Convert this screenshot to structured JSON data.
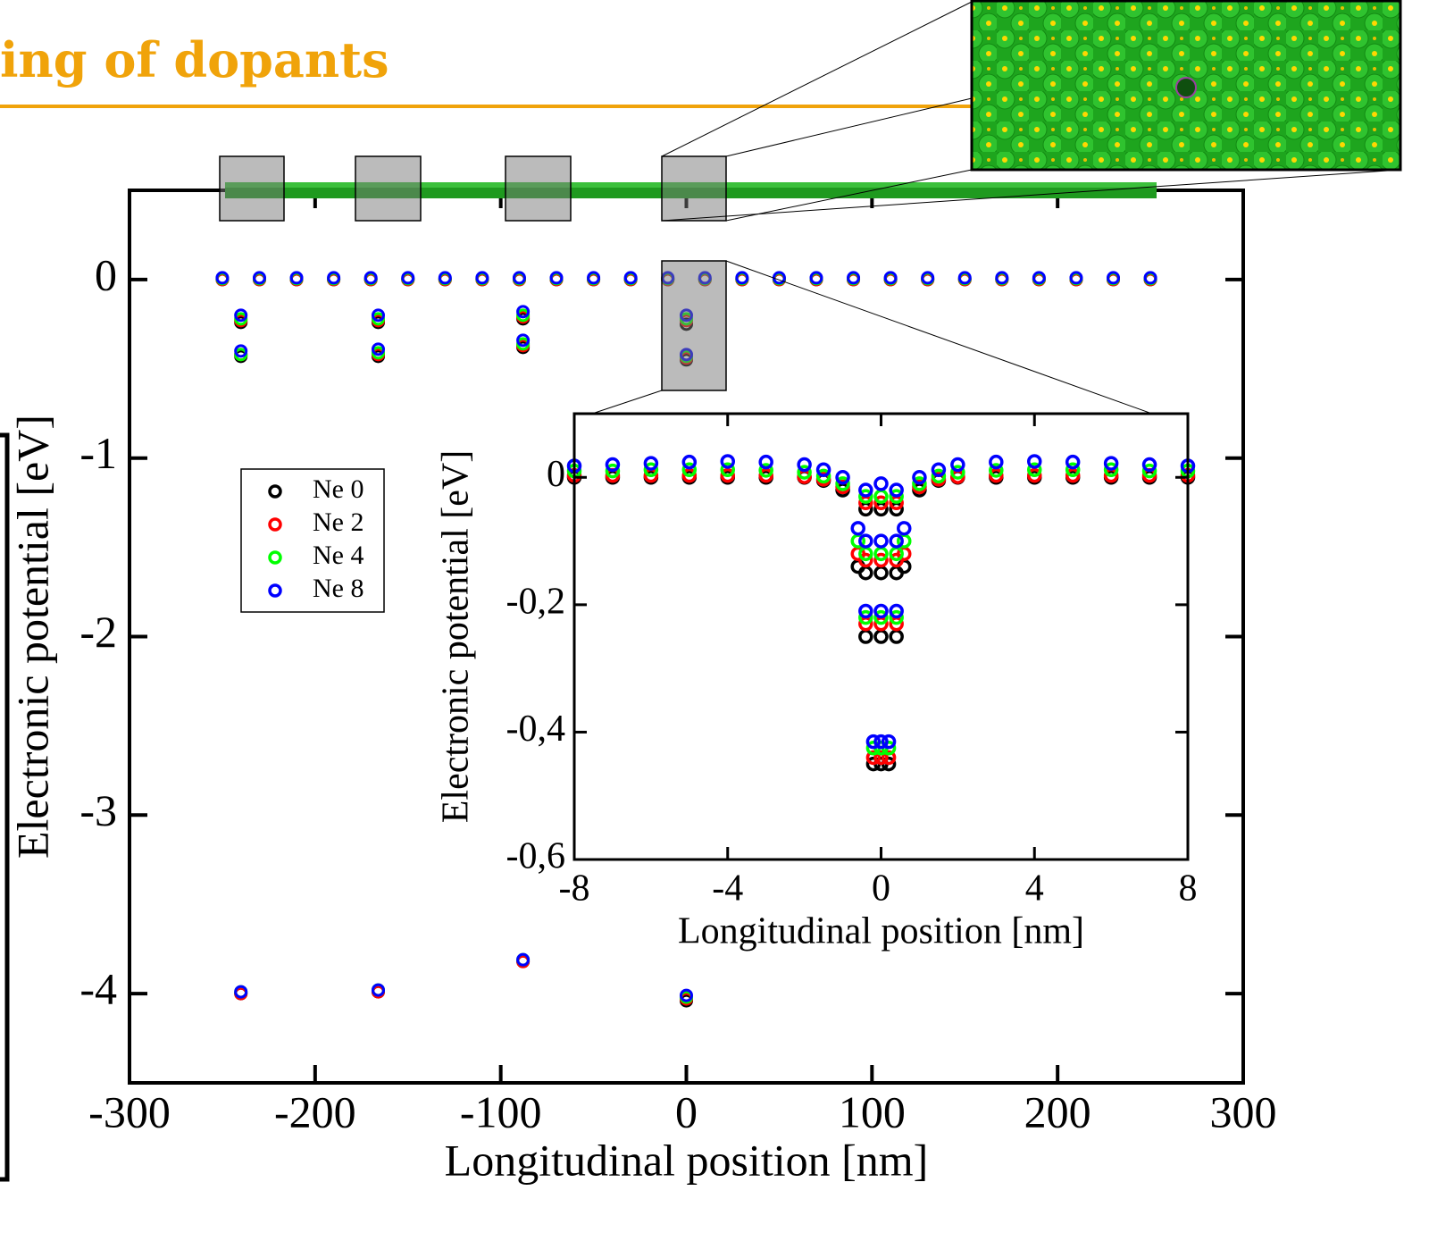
{
  "header": {
    "title": "ing of dopants"
  },
  "chart_data": [
    {
      "type": "scatter",
      "xlabel": "Longitudinal position [nm]",
      "ylabel": "Electronic potential [eV]",
      "xlim": [
        -300,
        300
      ],
      "ylim": [
        -4.5,
        0.5
      ],
      "xticks": [
        -300,
        -200,
        -100,
        0,
        100,
        200,
        300
      ],
      "yticks": [
        0,
        -1,
        -2,
        -3,
        -4
      ],
      "x": [
        -250,
        -230,
        -210,
        -190,
        -170,
        -150,
        -130,
        -110,
        -90,
        -70,
        -50,
        -30,
        -10,
        10,
        30,
        50,
        70,
        90,
        110,
        130,
        150,
        170,
        190,
        210,
        230,
        250,
        -240,
        -240,
        -240,
        -166,
        -166,
        -166,
        -88,
        -88,
        -88,
        0,
        0,
        0
      ],
      "series": [
        {
          "name": "Ne 0",
          "color": "#000000",
          "values": [
            0,
            0,
            0,
            0,
            0,
            0,
            0,
            0,
            0,
            0,
            0,
            0,
            0,
            0,
            0,
            0,
            0,
            0,
            0,
            0,
            0,
            0,
            0,
            0,
            0,
            0,
            -0.24,
            -0.43,
            -4.0,
            -0.24,
            -0.43,
            -3.99,
            -0.22,
            -0.38,
            -3.82,
            -0.25,
            -0.45,
            -4.04
          ]
        },
        {
          "name": "Ne 2",
          "color": "#ff0000",
          "values": [
            0,
            0,
            0,
            0,
            0,
            0,
            0,
            0,
            0,
            0,
            0,
            0,
            0,
            0,
            0,
            0,
            0,
            0,
            0,
            0,
            0,
            0,
            0,
            0,
            0,
            0,
            -0.23,
            -0.42,
            -4.0,
            -0.23,
            -0.42,
            -3.99,
            -0.21,
            -0.37,
            -3.82,
            -0.23,
            -0.44,
            -4.03
          ]
        },
        {
          "name": "Ne 4",
          "color": "#00ff00",
          "values": [
            0.005,
            0.005,
            0.005,
            0.005,
            0.005,
            0.005,
            0.005,
            0.005,
            0.005,
            0.005,
            0.005,
            0.005,
            0.005,
            0.005,
            0.005,
            0.005,
            0.005,
            0.005,
            0.005,
            0.005,
            0.005,
            0.005,
            0.005,
            0.005,
            0.005,
            0.005,
            -0.22,
            -0.42,
            -3.99,
            -0.22,
            -0.41,
            -3.98,
            -0.2,
            -0.36,
            -3.81,
            -0.22,
            -0.43,
            -4.02
          ]
        },
        {
          "name": "Ne 8",
          "color": "#0000ff",
          "values": [
            0.01,
            0.01,
            0.01,
            0.01,
            0.01,
            0.01,
            0.01,
            0.01,
            0.01,
            0.01,
            0.01,
            0.01,
            0.01,
            0.01,
            0.01,
            0.01,
            0.01,
            0.01,
            0.01,
            0.01,
            0.01,
            0.01,
            0.01,
            0.01,
            0.01,
            0.01,
            -0.2,
            -0.4,
            -3.99,
            -0.2,
            -0.39,
            -3.98,
            -0.18,
            -0.34,
            -3.81,
            -0.2,
            -0.42,
            -4.01
          ]
        }
      ]
    },
    {
      "type": "scatter",
      "xlabel": "Longitudinal position [nm]",
      "ylabel": "Electronic potential [eV]",
      "xlim": [
        -8,
        8
      ],
      "ylim": [
        -0.6,
        0.1
      ],
      "xticks": [
        -8,
        -4,
        0,
        4,
        8
      ],
      "yticks": [
        {
          "value": -0.6,
          "label": "-0,6"
        },
        {
          "value": -0.4,
          "label": "-0,4"
        },
        {
          "value": -0.2,
          "label": "-0,2"
        },
        0
      ],
      "x": [
        -8,
        -7,
        -6,
        -5,
        -4,
        -3,
        -2,
        -1.5,
        -1,
        -0.6,
        -0.4,
        -0.4,
        -0.4,
        0,
        0,
        0,
        0.4,
        0.4,
        0.4,
        0.6,
        1,
        1.5,
        2,
        3,
        4,
        5,
        6,
        7,
        8,
        -0.2,
        0,
        0.2
      ],
      "series": [
        {
          "name": "Ne 0",
          "color": "#000000",
          "values": [
            0,
            0,
            0,
            0,
            0,
            0,
            0,
            -0.005,
            -0.02,
            -0.14,
            -0.05,
            -0.15,
            -0.25,
            -0.05,
            -0.15,
            -0.25,
            -0.05,
            -0.15,
            -0.25,
            -0.14,
            -0.02,
            -0.005,
            0,
            0,
            0,
            0,
            0,
            0,
            0,
            -0.45,
            -0.45,
            -0.45
          ]
        },
        {
          "name": "Ne 2",
          "color": "#ff0000",
          "values": [
            0.003,
            0.003,
            0.003,
            0.003,
            0.003,
            0.003,
            0.001,
            -0.003,
            -0.015,
            -0.12,
            -0.04,
            -0.13,
            -0.23,
            -0.04,
            -0.13,
            -0.23,
            -0.04,
            -0.13,
            -0.23,
            -0.12,
            -0.015,
            -0.003,
            0.001,
            0.003,
            0.003,
            0.003,
            0.003,
            0.003,
            0.003,
            -0.44,
            -0.44,
            -0.44
          ]
        },
        {
          "name": "Ne 4",
          "color": "#00ff00",
          "values": [
            0.01,
            0.01,
            0.012,
            0.012,
            0.012,
            0.011,
            0.008,
            0.002,
            -0.01,
            -0.1,
            -0.03,
            -0.12,
            -0.22,
            -0.03,
            -0.12,
            -0.22,
            -0.03,
            -0.12,
            -0.22,
            -0.1,
            -0.01,
            0.002,
            0.008,
            0.011,
            0.012,
            0.012,
            0.012,
            0.01,
            0.01,
            -0.425,
            -0.425,
            -0.425
          ]
        },
        {
          "name": "Ne 8",
          "color": "#0000ff",
          "values": [
            0.018,
            0.02,
            0.022,
            0.024,
            0.025,
            0.024,
            0.02,
            0.012,
            0.0,
            -0.08,
            -0.02,
            -0.1,
            -0.21,
            -0.01,
            -0.1,
            -0.21,
            -0.02,
            -0.1,
            -0.21,
            -0.08,
            0.0,
            0.012,
            0.02,
            0.024,
            0.025,
            0.024,
            0.022,
            0.02,
            0.018,
            -0.415,
            -0.415,
            -0.415
          ]
        }
      ]
    }
  ]
}
